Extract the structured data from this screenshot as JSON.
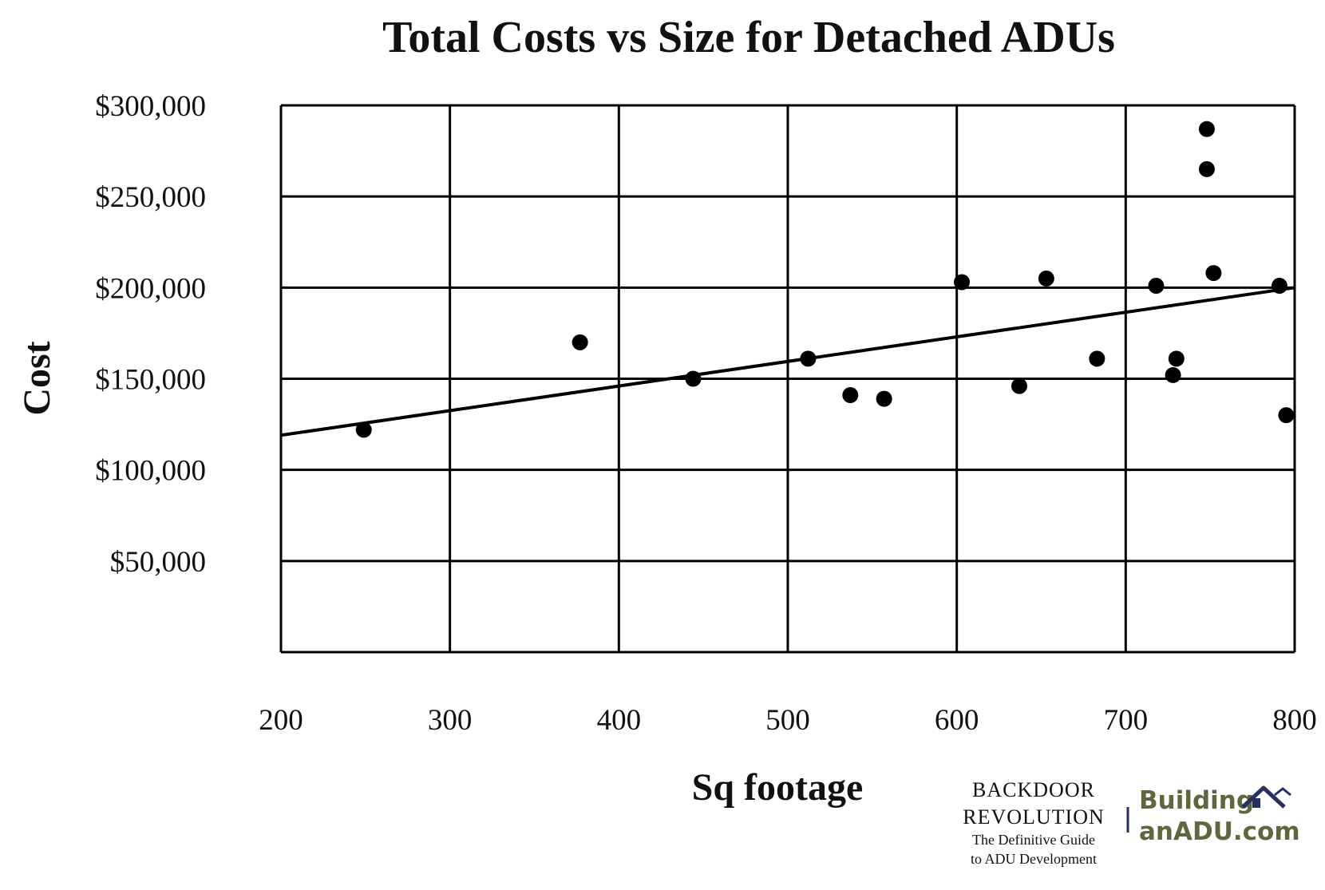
{
  "chart_data": {
    "type": "scatter",
    "title": "Total Costs vs Size for Detached ADUs",
    "xlabel": "Sq footage",
    "ylabel": "Cost",
    "xlim": [
      200,
      800
    ],
    "ylim": [
      0,
      300000
    ],
    "grid": true,
    "x_ticks": [
      200,
      300,
      400,
      500,
      600,
      700,
      800
    ],
    "x_tick_labels": [
      "200",
      "300",
      "400",
      "500",
      "600",
      "700",
      "800"
    ],
    "y_ticks": [
      50000,
      100000,
      150000,
      200000,
      250000,
      300000
    ],
    "y_tick_labels": [
      "$50,000",
      "$100,000",
      "$150,000",
      "$200,000",
      "$250,000",
      "$300,000"
    ],
    "series": [
      {
        "points": [
          {
            "x": 249,
            "y": 122000
          },
          {
            "x": 377,
            "y": 170000
          },
          {
            "x": 444,
            "y": 150000
          },
          {
            "x": 512,
            "y": 161000
          },
          {
            "x": 537,
            "y": 141000
          },
          {
            "x": 557,
            "y": 139000
          },
          {
            "x": 603,
            "y": 203000
          },
          {
            "x": 637,
            "y": 146000
          },
          {
            "x": 653,
            "y": 205000
          },
          {
            "x": 683,
            "y": 161000
          },
          {
            "x": 718,
            "y": 201000
          },
          {
            "x": 728,
            "y": 152000
          },
          {
            "x": 730,
            "y": 161000
          },
          {
            "x": 748,
            "y": 287000
          },
          {
            "x": 748,
            "y": 265000
          },
          {
            "x": 752,
            "y": 208000
          },
          {
            "x": 791,
            "y": 201000
          },
          {
            "x": 795,
            "y": 130000
          }
        ]
      }
    ],
    "trendline": {
      "x": [
        200,
        800
      ],
      "y": [
        119000,
        200000
      ]
    }
  },
  "branding": {
    "book_title_line1": "BACKDOOR",
    "book_title_line2": "REVOLUTION",
    "book_subtitle_line1": "The Definitive Guide",
    "book_subtitle_line2": "to ADU Development",
    "site_line1": "Building",
    "site_line2": "anADU.com",
    "site_color": "#5d6840",
    "house_icon_color": "#27305f",
    "separator_color": "#27305f"
  }
}
